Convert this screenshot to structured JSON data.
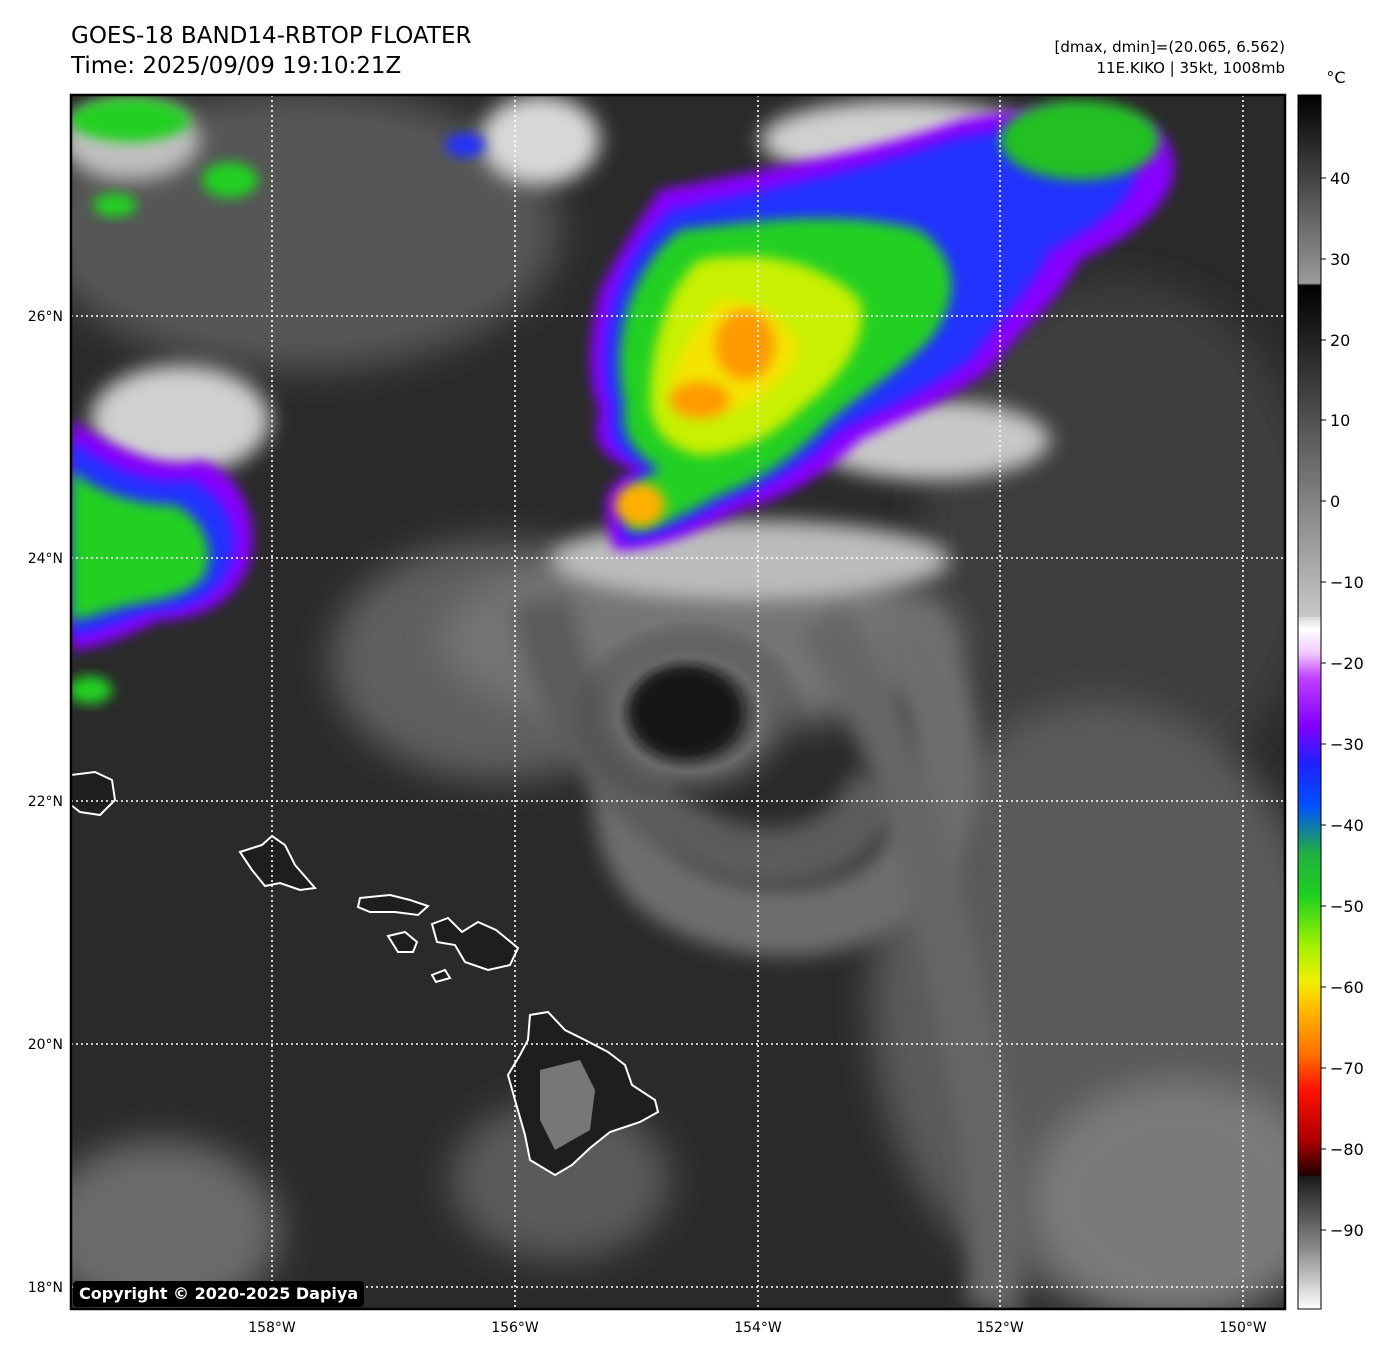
{
  "header": {
    "title": "GOES-18 BAND14-RBTOP FLOATER",
    "time": "Time: 2025/09/09 19:10:21Z",
    "dmax_dmin": "[dmax, dmin]=(20.065, 6.562)",
    "storm": "11E.KIKO | 35kt, 1008mb"
  },
  "map": {
    "lat_ticks": [
      "26°N",
      "24°N",
      "22°N",
      "20°N",
      "18°N"
    ],
    "lon_ticks": [
      "158°W",
      "156°W",
      "154°W",
      "152°W",
      "150°W"
    ],
    "features": [
      "Kiko cloud vortex",
      "Kauai",
      "Oahu",
      "Molokai",
      "Lanai",
      "Maui",
      "Kahoolawe",
      "Hawaii (Big Island)"
    ]
  },
  "colorbar": {
    "unit": "°C",
    "ticks": [
      "40",
      "30",
      "20",
      "10",
      "0",
      "−10",
      "−20",
      "−30",
      "−40",
      "−50",
      "−60",
      "−70",
      "−80",
      "−90"
    ]
  },
  "colors": {
    "frame": "#000000",
    "background": "#ffffff",
    "cold_top_green": "#2ecc22",
    "cold_top_yellow": "#e8f000",
    "cold_top_orange": "#ff8c00",
    "coastline": "#ffffff"
  },
  "copyright": "Copyright © 2020-2025 Dapiya"
}
